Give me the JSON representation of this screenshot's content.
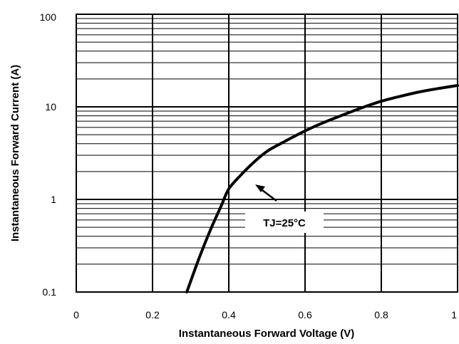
{
  "chart_data": {
    "type": "line",
    "title": "",
    "xlabel": "Instantaneous Forward Voltage (V)",
    "ylabel": "Instantaneous Forward Current (A)",
    "xlim": [
      0,
      1
    ],
    "ylim": [
      0.1,
      100
    ],
    "yscale": "log",
    "grid": true,
    "x_ticks": [
      {
        "value": 0,
        "label": "0"
      },
      {
        "value": 0.2,
        "label": "0.2"
      },
      {
        "value": 0.4,
        "label": "0.4"
      },
      {
        "value": 0.6,
        "label": "0.6"
      },
      {
        "value": 0.8,
        "label": "0.8"
      },
      {
        "value": 1,
        "label": "1"
      }
    ],
    "y_ticks": [
      {
        "value": 0.1,
        "label": "0.1"
      },
      {
        "value": 1,
        "label": "1"
      },
      {
        "value": 10,
        "label": "10"
      },
      {
        "value": 100,
        "label": "100"
      }
    ],
    "series": [
      {
        "x": [
          0.29,
          0.32,
          0.35,
          0.38,
          0.4,
          0.43,
          0.46,
          0.5,
          0.55,
          0.6,
          0.65,
          0.7,
          0.75,
          0.8,
          0.85,
          0.9,
          0.95,
          1.0
        ],
        "y": [
          0.1,
          0.22,
          0.45,
          0.85,
          1.3,
          1.8,
          2.4,
          3.3,
          4.3,
          5.5,
          6.8,
          8.2,
          9.8,
          11.5,
          13.0,
          14.5,
          15.8,
          17.0
        ],
        "color": "#000000"
      }
    ],
    "annotations": [
      {
        "text": "TJ=25°C",
        "x": 0.4,
        "y": 0.8
      }
    ]
  }
}
